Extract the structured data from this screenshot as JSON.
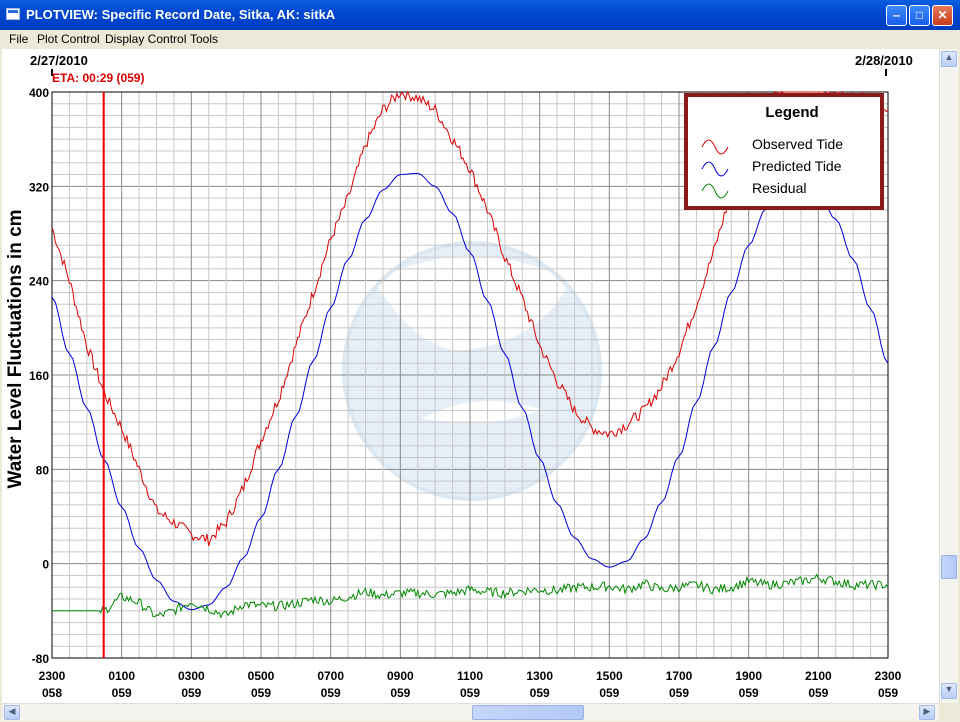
{
  "window": {
    "title": "PLOTVIEW: Specific Record Date, Sitka, AK: sitkA",
    "minimize_icon": "minimize-icon",
    "maximize_icon": "maximize-icon",
    "close_icon": "close-icon"
  },
  "menu": {
    "items": [
      "File",
      "Plot Control",
      "Display Control",
      "Tools"
    ]
  },
  "plot": {
    "date_left": "2/27/2010",
    "date_right": "2/28/2010",
    "eta_label": "ETA: 00:29 (059)",
    "legend_title": "Legend",
    "watermark": "noaa-logo-watermark"
  },
  "colors": {
    "observed": "#dd0000",
    "predicted": "#0000dd",
    "residual": "#008800",
    "eta_line": "#ee0000",
    "legend_border": "#8b1a1a",
    "title_bar": "#0054e3"
  },
  "chart_data": {
    "type": "line",
    "title": "",
    "xlabel": "",
    "ylabel": "Water Level Fluctuations in cm",
    "ylim": [
      -80,
      400
    ],
    "yticks": [
      -80,
      0,
      80,
      160,
      240,
      320,
      400
    ],
    "xlim_hours": [
      -1,
      23
    ],
    "xticks": [
      {
        "hour": "2300",
        "day": "058"
      },
      {
        "hour": "0100",
        "day": "059"
      },
      {
        "hour": "0300",
        "day": "059"
      },
      {
        "hour": "0500",
        "day": "059"
      },
      {
        "hour": "0700",
        "day": "059"
      },
      {
        "hour": "0900",
        "day": "059"
      },
      {
        "hour": "1100",
        "day": "059"
      },
      {
        "hour": "1300",
        "day": "059"
      },
      {
        "hour": "1500",
        "day": "059"
      },
      {
        "hour": "1700",
        "day": "059"
      },
      {
        "hour": "1900",
        "day": "059"
      },
      {
        "hour": "2100",
        "day": "059"
      },
      {
        "hour": "2300",
        "day": "059"
      }
    ],
    "grid": true,
    "legend_position": "top-right",
    "eta_marker": "00:29 (059)",
    "series": [
      {
        "name": "Observed Tide",
        "color": "#dd0000",
        "x_hours": [
          -1,
          -0.5,
          0,
          0.5,
          1,
          1.5,
          2,
          2.5,
          3,
          3.5,
          4,
          4.5,
          5,
          5.5,
          6,
          6.5,
          7,
          7.5,
          8,
          8.5,
          9,
          9.5,
          10,
          10.5,
          11,
          11.5,
          12,
          12.5,
          13,
          13.5,
          14,
          14.5,
          15,
          15.5,
          16,
          16.5,
          17,
          17.5,
          18,
          18.5,
          19,
          19.5,
          20,
          20.5,
          21,
          21.5,
          22,
          22.5,
          23
        ],
        "values": [
          285,
          240,
          185,
          145,
          115,
          80,
          45,
          35,
          25,
          20,
          35,
          65,
          105,
          140,
          185,
          230,
          275,
          310,
          355,
          385,
          400,
          395,
          385,
          360,
          335,
          300,
          260,
          225,
          185,
          155,
          130,
          115,
          110,
          118,
          130,
          150,
          180,
          220,
          265,
          315,
          360,
          390,
          405,
          410,
          405,
          400,
          395,
          395,
          380
        ]
      },
      {
        "name": "Predicted Tide",
        "color": "#0000dd",
        "x_hours": [
          -1,
          -0.5,
          0,
          0.5,
          1,
          1.5,
          2,
          2.5,
          3,
          3.5,
          4,
          4.5,
          5,
          5.5,
          6,
          6.5,
          7,
          7.5,
          8,
          8.5,
          9,
          9.5,
          10,
          10.5,
          11,
          11.5,
          12,
          12.5,
          13,
          13.5,
          14,
          14.5,
          15,
          15.5,
          16,
          16.5,
          17,
          17.5,
          18,
          18.5,
          19,
          19.5,
          20,
          20.5,
          21,
          21.5,
          22,
          22.5,
          23
        ],
        "values": [
          226,
          178,
          132,
          88,
          48,
          13,
          -14,
          -32,
          -39,
          -35,
          -20,
          5,
          39,
          80,
          125,
          172,
          217,
          258,
          292,
          317,
          330,
          331,
          320,
          297,
          264,
          223,
          178,
          132,
          89,
          51,
          22,
          4,
          -3,
          2,
          21,
          52,
          91,
          137,
          184,
          230,
          270,
          301,
          320,
          325,
          315,
          292,
          258,
          216,
          170
        ]
      },
      {
        "name": "Residual",
        "color": "#008800",
        "x_hours": [
          -1,
          -0.5,
          0,
          0.5,
          1,
          1.5,
          2,
          2.5,
          3,
          3.5,
          4,
          4.5,
          5,
          5.5,
          6,
          6.5,
          7,
          7.5,
          8,
          8.5,
          9,
          9.5,
          10,
          10.5,
          11,
          11.5,
          12,
          12.5,
          13,
          13.5,
          14,
          14.5,
          15,
          15.5,
          16,
          16.5,
          17,
          17.5,
          18,
          18.5,
          19,
          19.5,
          20,
          20.5,
          21,
          21.5,
          22,
          22.5,
          23
        ],
        "values": [
          -40,
          -40,
          -40,
          -40,
          -28,
          -33,
          -45,
          -40,
          -32,
          -38,
          -44,
          -34,
          -36,
          -36,
          -34,
          -30,
          -32,
          -28,
          -24,
          -27,
          -25,
          -25,
          -26,
          -25,
          -22,
          -24,
          -25,
          -23,
          -22,
          -23,
          -20,
          -20,
          -19,
          -22,
          -17,
          -22,
          -20,
          -18,
          -22,
          -20,
          -15,
          -18,
          -17,
          -15,
          -12,
          -15,
          -18,
          -18,
          -18
        ]
      }
    ]
  }
}
